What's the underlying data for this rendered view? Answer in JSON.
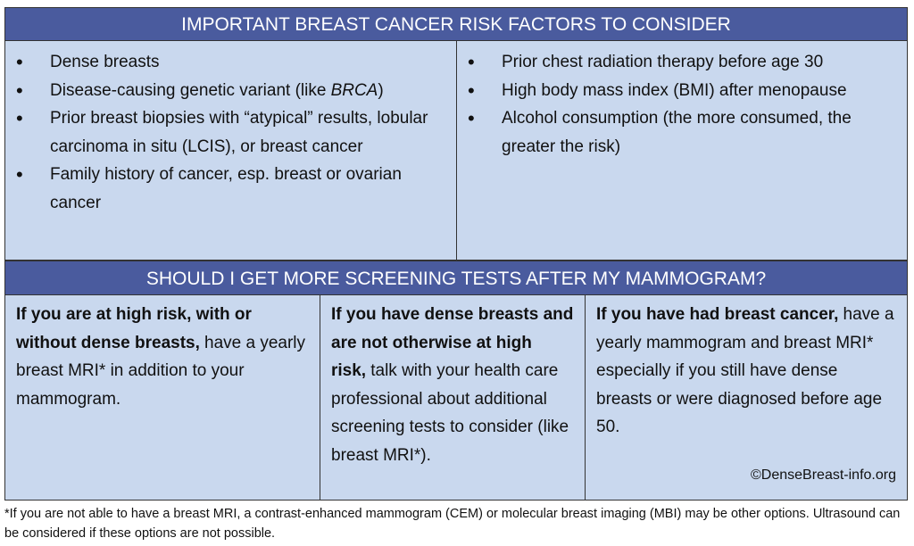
{
  "sections": [
    {
      "title": "IMPORTANT BREAST CANCER RISK FACTORS TO CONSIDER",
      "columns": [
        {
          "items": [
            {
              "text": "Dense breasts"
            },
            {
              "text": "Disease-causing genetic variant (like",
              "italic": "BRCA",
              "tail": ")"
            },
            {
              "text": "Prior breast biopsies with “atypical” results, lobular carcinoma in situ (LCIS), or breast cancer"
            },
            {
              "text": "Family history of cancer, esp. breast or ovarian cancer"
            }
          ]
        },
        {
          "items": [
            {
              "text": "Prior chest radiation therapy before age 30"
            },
            {
              "text": "High body mass index (BMI) after menopause"
            },
            {
              "text": "Alcohol consumption (the more consumed, the greater the risk)"
            }
          ]
        }
      ]
    },
    {
      "title": "SHOULD I GET MORE SCREENING TESTS AFTER MY MAMMOGRAM?",
      "columns": [
        {
          "bold": "If you are at high risk, with or without dense breasts,",
          "text": "have a yearly breast MRI* in addition to your mammogram."
        },
        {
          "bold": "If you have dense breasts and are not otherwise at high risk,",
          "text": "talk with your health care professional about additional screening tests to consider (like breast MRI*)."
        },
        {
          "bold": "If you have had breast cancer,",
          "text": "have a yearly mammogram and breast MRI* especially if you still have dense breasts or were diagnosed before age 50.",
          "credit": "©DenseBreast-info.org"
        }
      ]
    }
  ],
  "footnote": "*If you are not able to have a breast MRI, a contrast-enhanced mammogram (CEM) or molecular breast imaging (MBI) may be other options.  Ultrasound can be considered if these options are not possible."
}
